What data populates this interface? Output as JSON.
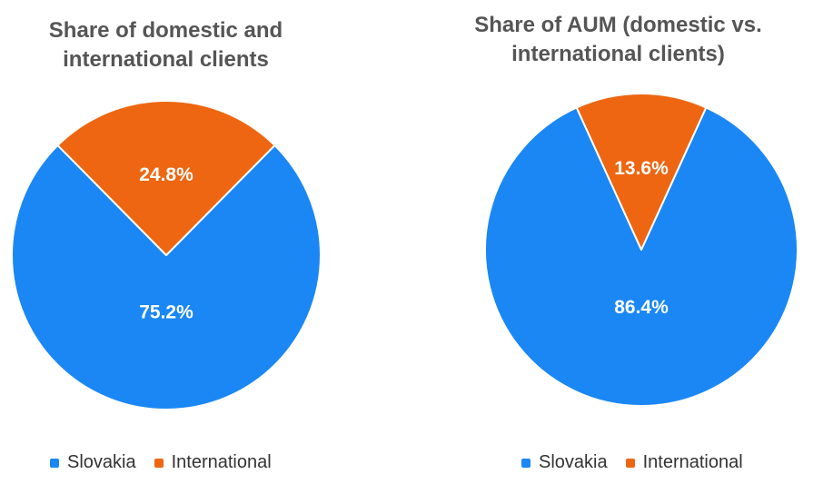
{
  "chart_data": [
    {
      "type": "pie",
      "title": "Share of domestic and international clients",
      "title_lines": [
        "Share of domestic and",
        "international clients"
      ],
      "slices": [
        {
          "label": "Slovakia",
          "value": 75.2,
          "display": "75.2%",
          "color": "#1a87f5"
        },
        {
          "label": "International",
          "value": 24.8,
          "display": "24.8%",
          "color": "#ee6611"
        }
      ],
      "legend_position": "bottom"
    },
    {
      "type": "pie",
      "title": "Share of AUM (domestic vs. international clients)",
      "title_lines": [
        "Share of AUM (domestic vs.",
        "international clients)"
      ],
      "slices": [
        {
          "label": "Slovakia",
          "value": 86.4,
          "display": "86.4%",
          "color": "#1a87f5"
        },
        {
          "label": "International",
          "value": 13.6,
          "display": "13.6%",
          "color": "#ee6611"
        }
      ],
      "legend_position": "bottom"
    }
  ]
}
